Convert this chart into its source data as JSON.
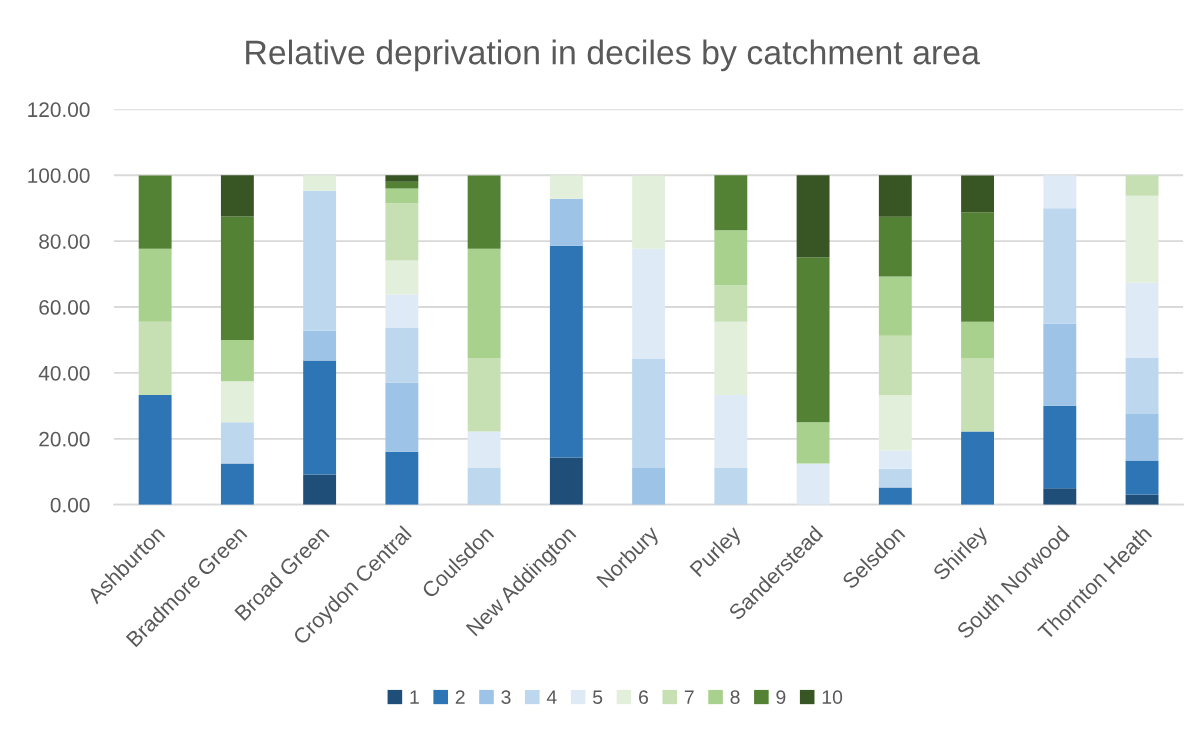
{
  "chart_data": {
    "type": "bar",
    "title": "Relative deprivation in deciles by catchment area",
    "categories": [
      "Ashburton",
      "Bradmore Green",
      "Broad Green",
      "Croydon Central",
      "Coulsdon",
      "New Addington",
      "Norbury",
      "Purley",
      "Sanderstead",
      "Selsdon",
      "Shirley",
      "South Norwood",
      "Thornton Heath"
    ],
    "stacked": true,
    "series": [
      {
        "name": "1",
        "color": "#1f4e79",
        "values": [
          null,
          null,
          9.2,
          null,
          null,
          14.3,
          null,
          null,
          null,
          null,
          null,
          5.0,
          3.1
        ]
      },
      {
        "name": "2",
        "color": "#2e75b6",
        "values": [
          33.3,
          12.5,
          34.6,
          16.1,
          null,
          64.3,
          null,
          null,
          null,
          5.2,
          22.2,
          25.0,
          10.3
        ]
      },
      {
        "name": "3",
        "color": "#9dc3e6",
        "values": [
          null,
          null,
          9.0,
          21.0,
          null,
          14.3,
          11.1,
          null,
          null,
          null,
          null,
          25.0,
          14.1
        ]
      },
      {
        "name": "4",
        "color": "#bdd7ee",
        "values": [
          null,
          12.5,
          42.5,
          16.7,
          11.1,
          null,
          33.3,
          11.1,
          null,
          5.7,
          null,
          35.0,
          17.0
        ]
      },
      {
        "name": "5",
        "color": "#deebf7",
        "values": [
          null,
          null,
          null,
          10.0,
          11.1,
          null,
          33.3,
          22.2,
          12.5,
          5.6,
          null,
          10.0,
          22.9
        ]
      },
      {
        "name": "6",
        "color": "#e2efda",
        "values": [
          null,
          12.5,
          4.7,
          10.3,
          null,
          7.1,
          22.2,
          22.2,
          null,
          16.7,
          null,
          null,
          26.4
        ]
      },
      {
        "name": "7",
        "color": "#c6e0b4",
        "values": [
          22.2,
          null,
          null,
          17.4,
          22.2,
          null,
          null,
          11.1,
          null,
          18.1,
          22.2,
          null,
          6.2
        ]
      },
      {
        "name": "8",
        "color": "#a9d18e",
        "values": [
          22.2,
          12.5,
          null,
          4.5,
          33.3,
          null,
          null,
          16.7,
          12.5,
          18.0,
          11.1,
          null,
          null
        ]
      },
      {
        "name": "9",
        "color": "#548235",
        "values": [
          22.2,
          37.5,
          null,
          2.0,
          22.2,
          null,
          null,
          16.7,
          50.0,
          18.1,
          33.3,
          null,
          null
        ]
      },
      {
        "name": "10",
        "color": "#375623",
        "values": [
          null,
          12.5,
          null,
          2.0,
          null,
          null,
          null,
          null,
          25.0,
          12.6,
          11.1,
          null,
          null
        ]
      }
    ],
    "ylim": [
      0,
      120
    ],
    "yticks": [
      {
        "value": 0,
        "label": "0.00"
      },
      {
        "value": 20,
        "label": "20.00"
      },
      {
        "value": 40,
        "label": "40.00"
      },
      {
        "value": 60,
        "label": "60.00"
      },
      {
        "value": 80,
        "label": "80.00"
      },
      {
        "value": 100,
        "label": "100.00"
      },
      {
        "value": 120,
        "label": "120.00"
      }
    ],
    "grid": "y",
    "legend": "bottom"
  }
}
